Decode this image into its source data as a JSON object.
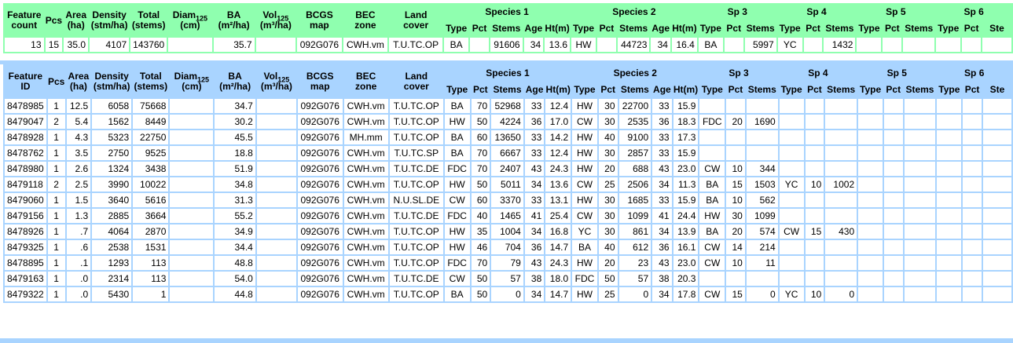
{
  "summary": {
    "headers": {
      "feature": "Feature",
      "count": "count",
      "pcs": "Pcs",
      "area": "Area",
      "area_unit": "(ha)",
      "density": "Density",
      "density_unit": "(stm/ha)",
      "total": "Total",
      "total_unit": "(stems)",
      "diam": "Diam",
      "diam_sub": "125",
      "diam_unit": "(cm)",
      "ba": "BA",
      "ba_unit": "(m²/ha)",
      "vol": "Vol",
      "vol_sub": "125",
      "vol_unit": "(m³/ha)",
      "bcgs": "BCGS",
      "bcgs2": "map",
      "bec": "BEC",
      "bec2": "zone",
      "land": "Land",
      "land2": "cover",
      "species1": "Species 1",
      "species2": "Species 2",
      "sp3": "Sp 3",
      "sp4": "Sp 4",
      "sp5": "Sp 5",
      "sp6": "Sp 6",
      "type": "Type",
      "pct": "Pct",
      "stems": "Stems",
      "age": "Age",
      "ht": "Ht(m)",
      "ste": "Ste"
    },
    "row": [
      "13",
      "15",
      "35.0",
      "4107",
      "143760",
      "",
      "35.7",
      "",
      "092G076",
      "CWH.vm",
      "T.U.TC.OP",
      "BA",
      "",
      "91606",
      "34",
      "13.6",
      "HW",
      "",
      "44723",
      "34",
      "16.4",
      "BA",
      "",
      "5997",
      "YC",
      "",
      "1432",
      "",
      "",
      "",
      "",
      "",
      ""
    ]
  },
  "detail": {
    "headers": {
      "feature": "Feature",
      "id": "ID",
      "pcs": "Pcs",
      "area": "Area",
      "area_unit": "(ha)",
      "density": "Density",
      "density_unit": "(stm/ha)",
      "total": "Total",
      "total_unit": "(stems)",
      "diam": "Diam",
      "diam_sub": "125",
      "diam_unit": "(cm)",
      "ba": "BA",
      "ba_unit": "(m²/ha)",
      "vol": "Vol",
      "vol_sub": "125",
      "vol_unit": "(m³/ha)",
      "bcgs": "BCGS",
      "bcgs2": "map",
      "bec": "BEC",
      "bec2": "zone",
      "land": "Land",
      "land2": "cover",
      "species1": "Species 1",
      "species2": "Species 2",
      "sp3": "Sp 3",
      "sp4": "Sp 4",
      "sp5": "Sp 5",
      "sp6": "Sp 6",
      "type": "Type",
      "pct": "Pct",
      "stems": "Stems",
      "age": "Age",
      "ht": "Ht(m)",
      "ste": "Ste"
    },
    "rows": [
      [
        "8478985",
        "1",
        "12.5",
        "6058",
        "75668",
        "",
        "34.7",
        "",
        "092G076",
        "CWH.vm",
        "T.U.TC.OP",
        "BA",
        "70",
        "52968",
        "33",
        "12.4",
        "HW",
        "30",
        "22700",
        "33",
        "15.9",
        "",
        "",
        "",
        "",
        "",
        "",
        "",
        "",
        "",
        "",
        "",
        ""
      ],
      [
        "8479047",
        "2",
        "5.4",
        "1562",
        "8449",
        "",
        "30.2",
        "",
        "092G076",
        "CWH.vm",
        "T.U.TC.OP",
        "HW",
        "50",
        "4224",
        "36",
        "17.0",
        "CW",
        "30",
        "2535",
        "36",
        "18.3",
        "FDC",
        "20",
        "1690",
        "",
        "",
        "",
        "",
        "",
        "",
        "",
        "",
        ""
      ],
      [
        "8478928",
        "1",
        "4.3",
        "5323",
        "22750",
        "",
        "45.5",
        "",
        "092G076",
        "MH.mm",
        "T.U.TC.OP",
        "BA",
        "60",
        "13650",
        "33",
        "14.2",
        "HW",
        "40",
        "9100",
        "33",
        "17.3",
        "",
        "",
        "",
        "",
        "",
        "",
        "",
        "",
        "",
        "",
        "",
        ""
      ],
      [
        "8478762",
        "1",
        "3.5",
        "2750",
        "9525",
        "",
        "18.8",
        "",
        "092G076",
        "CWH.vm",
        "T.U.TC.SP",
        "BA",
        "70",
        "6667",
        "33",
        "12.4",
        "HW",
        "30",
        "2857",
        "33",
        "15.9",
        "",
        "",
        "",
        "",
        "",
        "",
        "",
        "",
        "",
        "",
        "",
        ""
      ],
      [
        "8478980",
        "1",
        "2.6",
        "1324",
        "3438",
        "",
        "51.9",
        "",
        "092G076",
        "CWH.vm",
        "T.U.TC.DE",
        "FDC",
        "70",
        "2407",
        "43",
        "24.3",
        "HW",
        "20",
        "688",
        "43",
        "23.0",
        "CW",
        "10",
        "344",
        "",
        "",
        "",
        "",
        "",
        "",
        "",
        "",
        ""
      ],
      [
        "8479118",
        "2",
        "2.5",
        "3990",
        "10022",
        "",
        "34.8",
        "",
        "092G076",
        "CWH.vm",
        "T.U.TC.OP",
        "HW",
        "50",
        "5011",
        "34",
        "13.6",
        "CW",
        "25",
        "2506",
        "34",
        "11.3",
        "BA",
        "15",
        "1503",
        "YC",
        "10",
        "1002",
        "",
        "",
        "",
        "",
        "",
        ""
      ],
      [
        "8479060",
        "1",
        "1.5",
        "3640",
        "5616",
        "",
        "31.3",
        "",
        "092G076",
        "CWH.vm",
        "N.U.SL.DE",
        "CW",
        "60",
        "3370",
        "33",
        "13.1",
        "HW",
        "30",
        "1685",
        "33",
        "15.9",
        "BA",
        "10",
        "562",
        "",
        "",
        "",
        "",
        "",
        "",
        "",
        "",
        ""
      ],
      [
        "8479156",
        "1",
        "1.3",
        "2885",
        "3664",
        "",
        "55.2",
        "",
        "092G076",
        "CWH.vm",
        "T.U.TC.DE",
        "FDC",
        "40",
        "1465",
        "41",
        "25.4",
        "CW",
        "30",
        "1099",
        "41",
        "24.4",
        "HW",
        "30",
        "1099",
        "",
        "",
        "",
        "",
        "",
        "",
        "",
        "",
        ""
      ],
      [
        "8478926",
        "1",
        ".7",
        "4064",
        "2870",
        "",
        "34.9",
        "",
        "092G076",
        "CWH.vm",
        "T.U.TC.OP",
        "HW",
        "35",
        "1004",
        "34",
        "16.8",
        "YC",
        "30",
        "861",
        "34",
        "13.9",
        "BA",
        "20",
        "574",
        "CW",
        "15",
        "430",
        "",
        "",
        "",
        "",
        "",
        ""
      ],
      [
        "8479325",
        "1",
        ".6",
        "2538",
        "1531",
        "",
        "34.4",
        "",
        "092G076",
        "CWH.vm",
        "T.U.TC.OP",
        "HW",
        "46",
        "704",
        "36",
        "14.7",
        "BA",
        "40",
        "612",
        "36",
        "16.1",
        "CW",
        "14",
        "214",
        "",
        "",
        "",
        "",
        "",
        "",
        "",
        "",
        ""
      ],
      [
        "8478895",
        "1",
        ".1",
        "1293",
        "113",
        "",
        "48.8",
        "",
        "092G076",
        "CWH.vm",
        "T.U.TC.OP",
        "FDC",
        "70",
        "79",
        "43",
        "24.3",
        "HW",
        "20",
        "23",
        "43",
        "23.0",
        "CW",
        "10",
        "11",
        "",
        "",
        "",
        "",
        "",
        "",
        "",
        "",
        ""
      ],
      [
        "8479163",
        "1",
        ".0",
        "2314",
        "113",
        "",
        "54.0",
        "",
        "092G076",
        "CWH.vm",
        "T.U.TC.DE",
        "CW",
        "50",
        "57",
        "38",
        "18.0",
        "FDC",
        "50",
        "57",
        "38",
        "20.3",
        "",
        "",
        "",
        "",
        "",
        "",
        "",
        "",
        "",
        "",
        "",
        ""
      ],
      [
        "8479322",
        "1",
        ".0",
        "5430",
        "1",
        "",
        "44.8",
        "",
        "092G076",
        "CWH.vm",
        "T.U.TC.OP",
        "BA",
        "50",
        "0",
        "34",
        "14.7",
        "HW",
        "25",
        "0",
        "34",
        "17.8",
        "CW",
        "15",
        "0",
        "YC",
        "10",
        "0",
        "",
        "",
        "",
        "",
        "",
        ""
      ]
    ]
  }
}
